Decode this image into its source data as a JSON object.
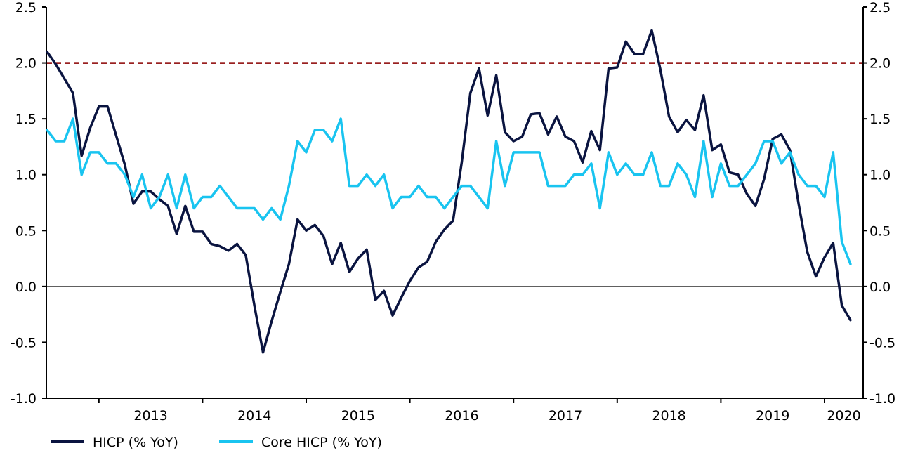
{
  "colors": {
    "hicp": "#0a1440",
    "core": "#19c4f0",
    "target": "#8b0000",
    "axis": "#000000"
  },
  "chart_data": {
    "type": "line",
    "title": "",
    "xlabel": "",
    "ylabel": "",
    "ylim": [
      -1.0,
      2.5
    ],
    "y_ticks": [
      "2.5",
      "2.0",
      "1.5",
      "1.0",
      "0.5",
      "0.0",
      "-0.5",
      "-1.0"
    ],
    "y_tick_values": [
      2.5,
      2.0,
      1.5,
      1.0,
      0.5,
      0.0,
      -0.5,
      -1.0
    ],
    "x_start": "2012-07",
    "x_end": "2020-08",
    "year_labels": [
      "2013",
      "2014",
      "2015",
      "2016",
      "2017",
      "2018",
      "2019",
      "2020"
    ],
    "target_line": {
      "value": 2.0,
      "style": "dashed"
    },
    "zero_line": 0.0,
    "legend_position": "bottom-left",
    "series": [
      {
        "name": "HICP (% YoY)",
        "values": [
          2.1,
          1.99,
          1.86,
          1.73,
          1.17,
          1.42,
          1.61,
          1.61,
          1.35,
          1.09,
          0.74,
          0.85,
          0.85,
          0.78,
          0.72,
          0.47,
          0.72,
          0.49,
          0.49,
          0.38,
          0.36,
          0.32,
          0.38,
          0.28,
          -0.17,
          -0.59,
          -0.31,
          -0.05,
          0.2,
          0.6,
          0.5,
          0.55,
          0.45,
          0.2,
          0.39,
          0.13,
          0.25,
          0.33,
          -0.12,
          -0.04,
          -0.26,
          -0.1,
          0.05,
          0.17,
          0.22,
          0.4,
          0.51,
          0.59,
          1.11,
          1.73,
          1.95,
          1.53,
          1.89,
          1.38,
          1.3,
          1.34,
          1.54,
          1.55,
          1.36,
          1.52,
          1.34,
          1.3,
          1.11,
          1.39,
          1.22,
          1.95,
          1.96,
          2.19,
          2.08,
          2.08,
          2.29,
          1.94,
          1.52,
          1.38,
          1.49,
          1.4,
          1.71,
          1.22,
          1.27,
          1.02,
          1.0,
          0.83,
          0.72,
          0.96,
          1.32,
          1.36,
          1.22,
          0.74,
          0.31,
          0.09,
          0.26,
          0.39,
          -0.17,
          -0.3
        ]
      },
      {
        "name": "Core HICP (% YoY)",
        "values": [
          1.4,
          1.3,
          1.3,
          1.5,
          1.0,
          1.2,
          1.2,
          1.1,
          1.1,
          1.0,
          0.8,
          1.0,
          0.7,
          0.8,
          1.0,
          0.7,
          1.0,
          0.7,
          0.8,
          0.8,
          0.9,
          0.8,
          0.7,
          0.7,
          0.7,
          0.6,
          0.7,
          0.6,
          0.9,
          1.3,
          1.2,
          1.4,
          1.4,
          1.3,
          1.5,
          0.9,
          0.9,
          1.0,
          0.9,
          1.0,
          0.7,
          0.8,
          0.8,
          0.9,
          0.8,
          0.8,
          0.7,
          0.8,
          0.9,
          0.9,
          0.8,
          0.7,
          1.3,
          0.9,
          1.2,
          1.2,
          1.2,
          1.2,
          0.9,
          0.9,
          0.9,
          1.0,
          1.0,
          1.1,
          0.7,
          1.2,
          1.0,
          1.1,
          1.0,
          1.0,
          1.2,
          0.9,
          0.9,
          1.1,
          1.0,
          0.8,
          1.3,
          0.8,
          1.1,
          0.9,
          0.9,
          1.0,
          1.1,
          1.3,
          1.3,
          1.1,
          1.2,
          1.0,
          0.9,
          0.9,
          0.8,
          1.2,
          0.4,
          0.2
        ]
      }
    ]
  }
}
